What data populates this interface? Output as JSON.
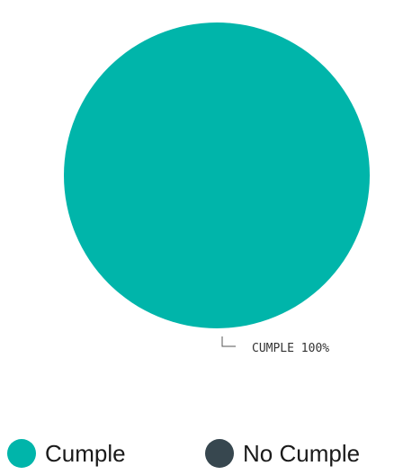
{
  "chart_data": {
    "type": "pie",
    "categories": [
      "Cumple",
      "No Cumple"
    ],
    "values": [
      100,
      0
    ],
    "colors": [
      "#00B5AA",
      "#37474F"
    ],
    "slice_labels": [
      "CUMPLE 100%"
    ],
    "legend": {
      "position": "bottom",
      "entries": [
        "Cumple",
        "No Cumple"
      ]
    }
  }
}
